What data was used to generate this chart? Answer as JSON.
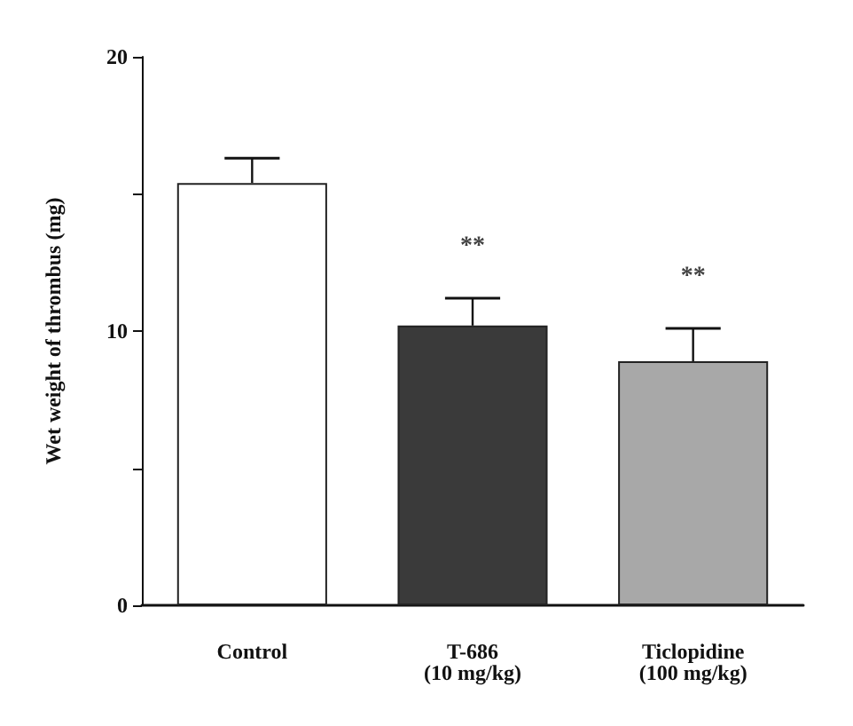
{
  "chart_data": {
    "type": "bar",
    "ylabel": "Wet weight of thrombus (mg)",
    "categories": [
      "Control",
      "T-686\n(10 mg/kg)",
      "Ticlopidine\n(100 mg/kg)"
    ],
    "values": [
      15.4,
      10.2,
      8.9
    ],
    "colors": [
      "#ffffff",
      "#3a3a3a",
      "#a8a8a8"
    ],
    "errors": [
      [
        15.4,
        16.3
      ],
      [
        10.2,
        11.2
      ],
      [
        8.9,
        10.1
      ]
    ],
    "ylim": [
      0,
      20
    ],
    "yticks": [
      0,
      {
        "value": 5,
        "label": null
      },
      10,
      {
        "value": 15,
        "label": null
      },
      20
    ],
    "annotations": [
      "**",
      "**"
    ]
  }
}
